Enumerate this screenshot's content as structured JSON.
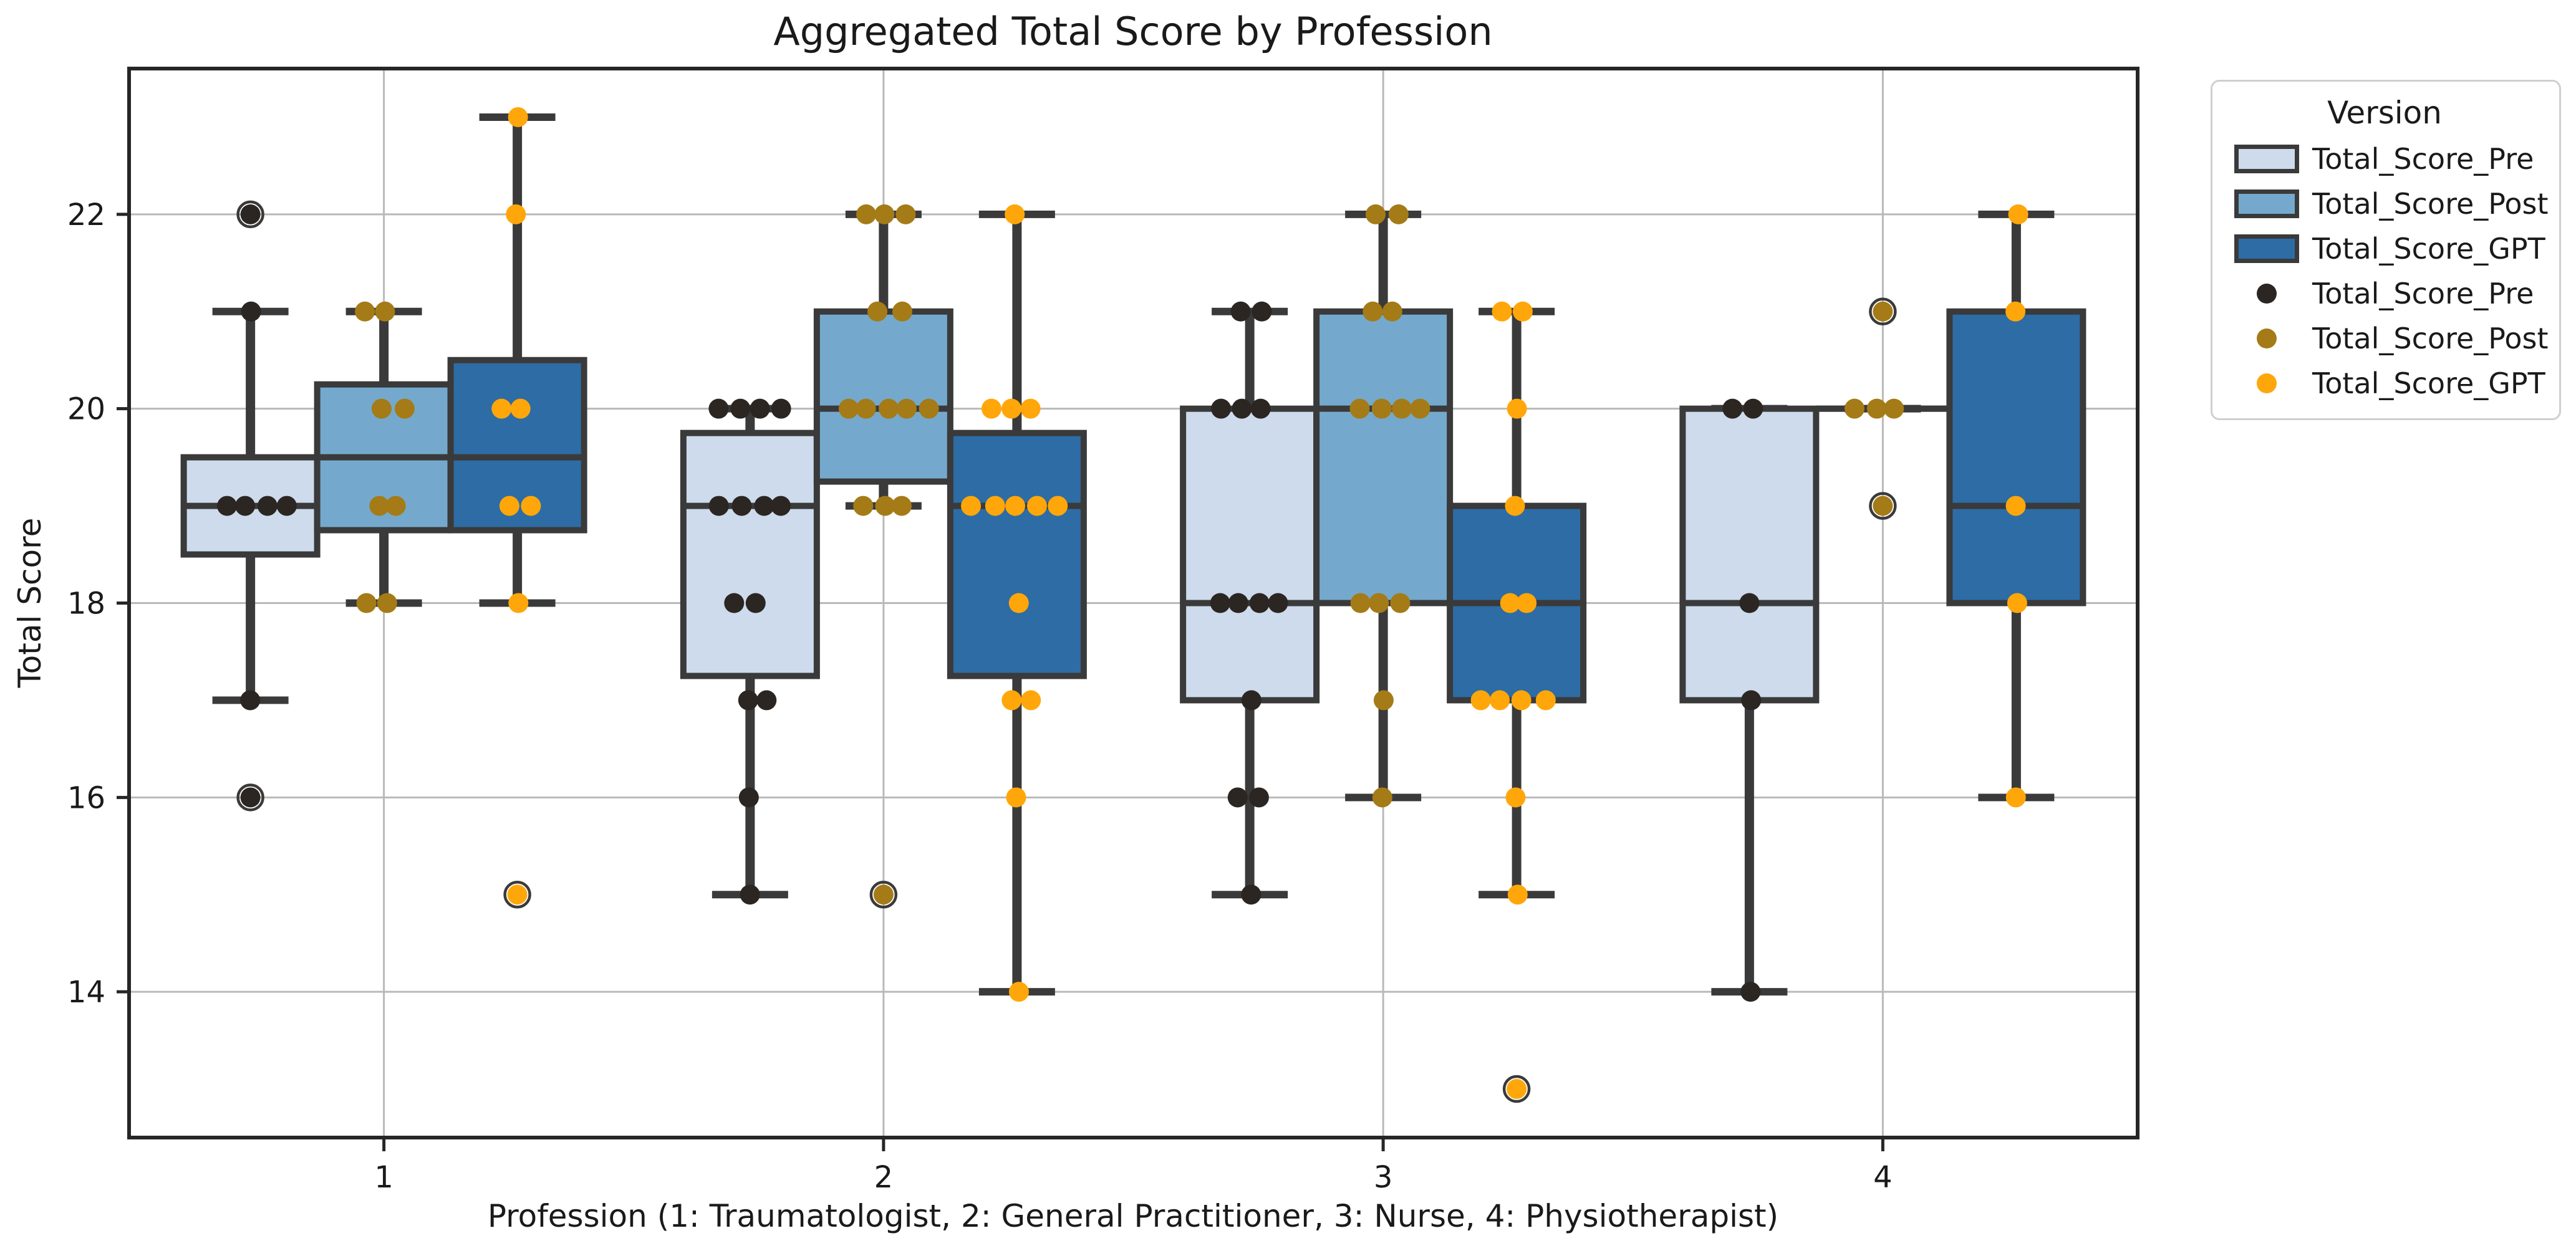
{
  "title": "Aggregated Total Score by Profession",
  "x_axis": {
    "label": "Profession (1: Traumatologist, 2: General Practitioner, 3: Nurse, 4: Physiotherapist)",
    "tick_labels": [
      "1",
      "2",
      "3",
      "4"
    ]
  },
  "y_axis": {
    "label": "Total Score",
    "tick_values": [
      14,
      16,
      18,
      20,
      22
    ],
    "range": [
      12.5,
      23.5
    ]
  },
  "legend": {
    "title": "Version",
    "box_entries": [
      {
        "label": "Total_Score_Pre",
        "color": "#cddbec"
      },
      {
        "label": "Total_Score_Post",
        "color": "#74a9cd"
      },
      {
        "label": "Total_Score_GPT",
        "color": "#2d6ca5"
      }
    ],
    "point_entries": [
      {
        "label": "Total_Score_Pre",
        "color": "#2b2622"
      },
      {
        "label": "Total_Score_Post",
        "color": "#a47b17"
      },
      {
        "label": "Total_Score_GPT",
        "color": "#ffa70a"
      }
    ]
  },
  "colors": {
    "box_edge": "#3a3a3a",
    "spine": "#262626",
    "grid": "#b9b9b9",
    "background": "#ffffff",
    "text": "#1a1a1a"
  },
  "chart_data": {
    "type": "box",
    "title": "Aggregated Total Score by Profession",
    "xlabel": "Profession (1: Traumatologist, 2: General Practitioner, 3: Nurse, 4: Physiotherapist)",
    "ylabel": "Total Score",
    "categories": [
      "1",
      "2",
      "3",
      "4"
    ],
    "y_ticks": [
      14,
      16,
      18,
      20,
      22
    ],
    "ylim": [
      12.5,
      23.5
    ],
    "grid": true,
    "legend_position": "upper right outside",
    "series": [
      {
        "name": "Total_Score_Pre",
        "fill": "#cddbec",
        "dot_color": "#2b2622",
        "boxes": [
          {
            "category": "1",
            "q1": 18.5,
            "median": 19,
            "q3": 19.5,
            "whisker_low": 17,
            "whisker_high": 21,
            "fliers": [
              22,
              16
            ],
            "points": [
              22,
              21,
              19,
              19,
              19,
              19,
              17,
              16
            ]
          },
          {
            "category": "2",
            "q1": 17.25,
            "median": 19,
            "q3": 19.75,
            "whisker_low": 15,
            "whisker_high": 20,
            "fliers": [],
            "points": [
              20,
              20,
              20,
              20,
              19,
              19,
              19,
              19,
              18,
              18,
              17,
              17,
              16,
              15
            ]
          },
          {
            "category": "3",
            "q1": 17,
            "median": 18,
            "q3": 20,
            "whisker_low": 15,
            "whisker_high": 21,
            "fliers": [],
            "points": [
              21,
              21,
              20,
              20,
              20,
              18,
              18,
              18,
              18,
              17,
              16,
              16,
              15
            ]
          },
          {
            "category": "4",
            "q1": 17,
            "median": 18,
            "q3": 20,
            "whisker_low": 14,
            "whisker_high": 20,
            "fliers": [],
            "points": [
              20,
              20,
              18,
              17,
              14
            ]
          }
        ]
      },
      {
        "name": "Total_Score_Post",
        "fill": "#74a9cd",
        "dot_color": "#a47b17",
        "boxes": [
          {
            "category": "1",
            "q1": 18.75,
            "median": 19.5,
            "q3": 20.25,
            "whisker_low": 18,
            "whisker_high": 21,
            "fliers": [],
            "points": [
              21,
              21,
              20,
              20,
              19,
              19,
              18,
              18
            ]
          },
          {
            "category": "2",
            "q1": 19.25,
            "median": 20,
            "q3": 21,
            "whisker_low": 19,
            "whisker_high": 22,
            "fliers": [
              15
            ],
            "points": [
              22,
              22,
              22,
              21,
              21,
              20,
              20,
              20,
              20,
              20,
              19,
              19,
              19,
              15
            ]
          },
          {
            "category": "3",
            "q1": 18,
            "median": 20,
            "q3": 21,
            "whisker_low": 16,
            "whisker_high": 22,
            "fliers": [],
            "points": [
              22,
              22,
              21,
              21,
              20,
              20,
              20,
              20,
              18,
              18,
              18,
              17,
              16
            ]
          },
          {
            "category": "4",
            "q1": 20,
            "median": 20,
            "q3": 20,
            "whisker_low": 20,
            "whisker_high": 20,
            "fliers": [
              21,
              19
            ],
            "points": [
              21,
              20,
              20,
              20,
              19
            ]
          }
        ]
      },
      {
        "name": "Total_Score_GPT",
        "fill": "#2d6ca5",
        "dot_color": "#ffa70a",
        "boxes": [
          {
            "category": "1",
            "q1": 18.75,
            "median": 19.5,
            "q3": 20.5,
            "whisker_low": 18,
            "whisker_high": 23,
            "fliers": [
              15
            ],
            "points": [
              23,
              22,
              20,
              20,
              19,
              19,
              18,
              15
            ]
          },
          {
            "category": "2",
            "q1": 17.25,
            "median": 19,
            "q3": 19.75,
            "whisker_low": 14,
            "whisker_high": 22,
            "fliers": [],
            "points": [
              22,
              20,
              20,
              20,
              19,
              19,
              19,
              19,
              19,
              18,
              17,
              17,
              16,
              14
            ]
          },
          {
            "category": "3",
            "q1": 17,
            "median": 18,
            "q3": 19,
            "whisker_low": 15,
            "whisker_high": 21,
            "fliers": [
              13
            ],
            "points": [
              21,
              21,
              20,
              19,
              18,
              18,
              17,
              17,
              17,
              17,
              16,
              15,
              13
            ]
          },
          {
            "category": "4",
            "q1": 18,
            "median": 19,
            "q3": 21,
            "whisker_low": 16,
            "whisker_high": 22,
            "fliers": [],
            "points": [
              22,
              21,
              19,
              18,
              16
            ]
          }
        ]
      }
    ]
  }
}
